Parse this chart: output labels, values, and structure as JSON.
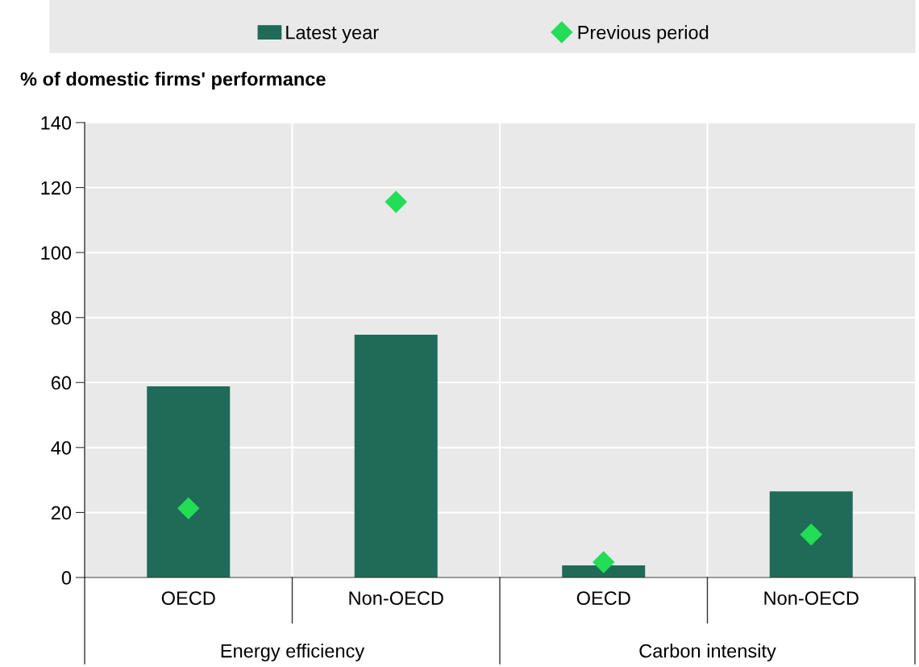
{
  "chart_data": {
    "type": "bar",
    "ylabel": "% of domestic firms' performance",
    "categories": [
      "OECD",
      "Non-OECD",
      "OECD",
      "Non-OECD"
    ],
    "annotations": [
      "Energy efficiency",
      "Carbon intensity"
    ],
    "series": [
      {
        "name": "Latest year",
        "color": "#1f6b57",
        "values": [
          58.8,
          74.7,
          3.7,
          26.5
        ]
      },
      {
        "name": "Previous period",
        "type": "scatter",
        "color": "#22dd55",
        "marker": "diamond",
        "values": [
          21.3,
          115.6,
          4.7,
          13.2
        ]
      }
    ],
    "ylim": [
      0,
      140
    ],
    "yticks": [
      0,
      20,
      40,
      60,
      80,
      100,
      120,
      140
    ],
    "grid": true,
    "legend": "top"
  }
}
